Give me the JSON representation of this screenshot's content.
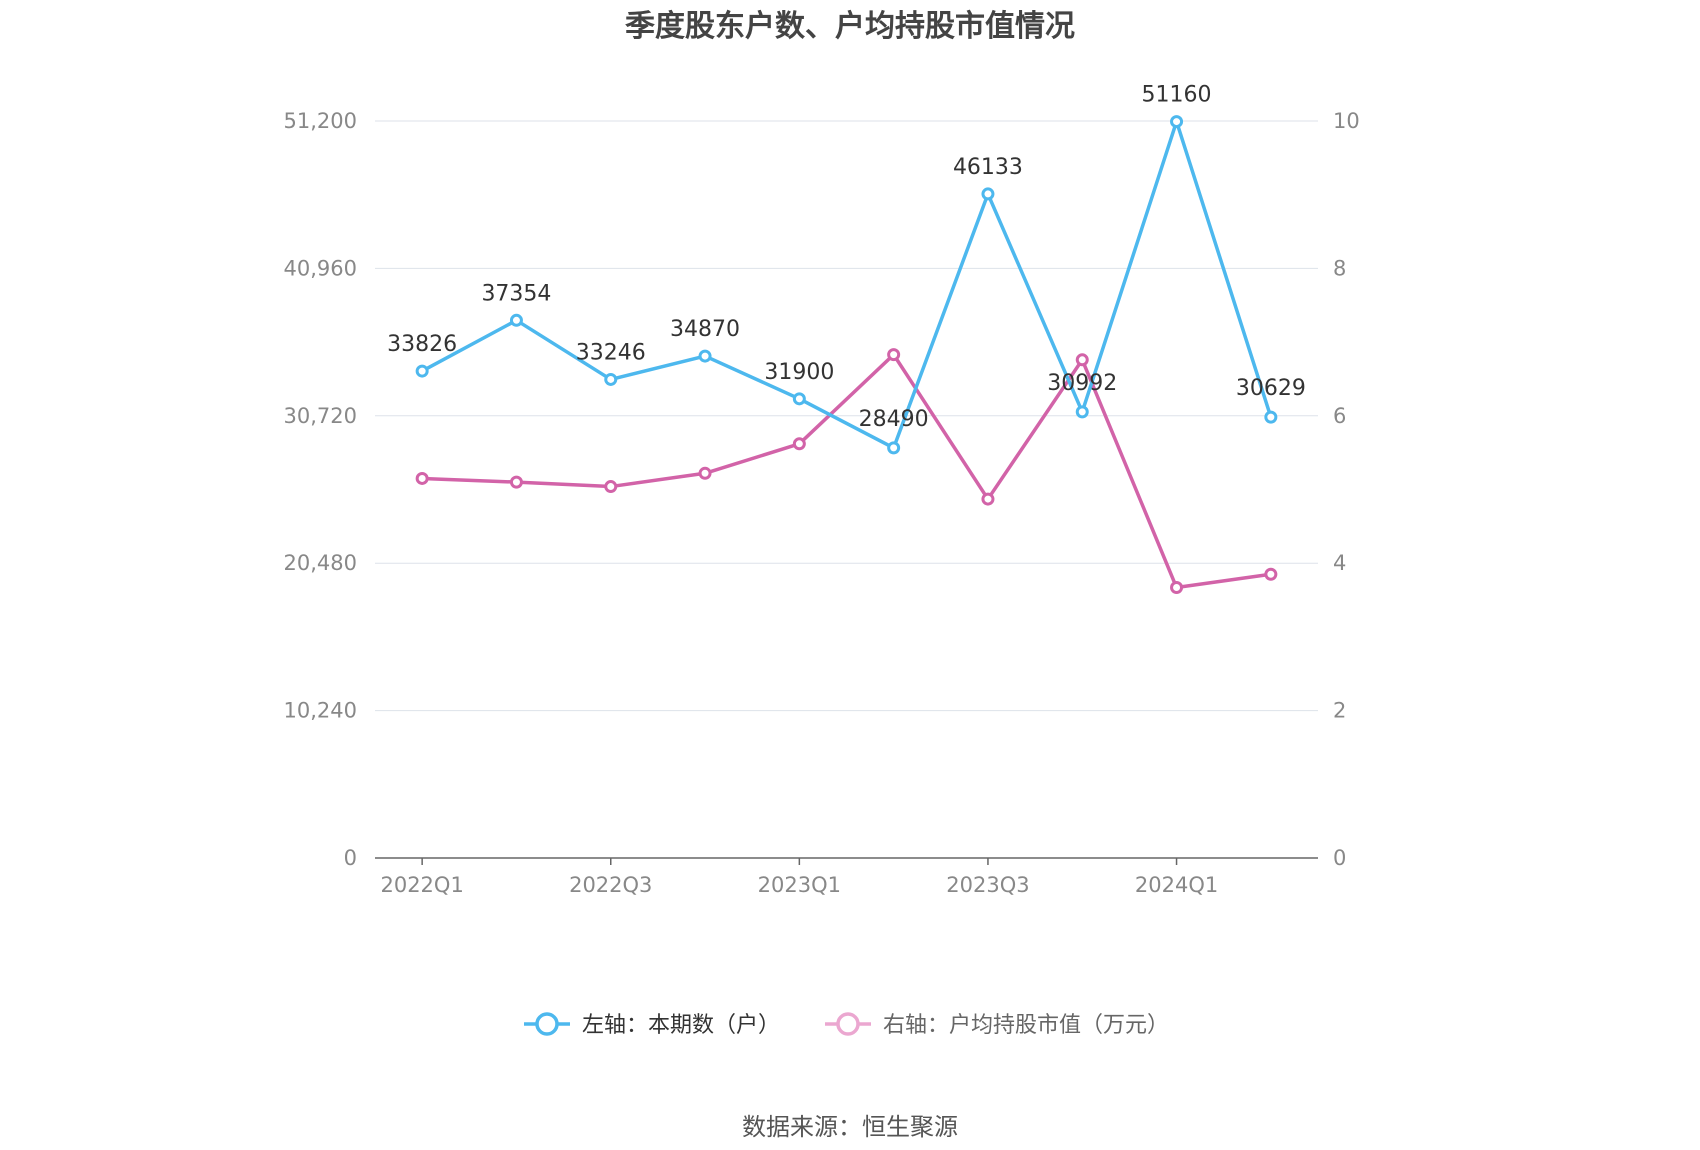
{
  "chart_data": {
    "type": "line",
    "title": "季度股东户数、户均持股市值情况",
    "categories": [
      "2022Q1",
      "2022Q2",
      "2022Q3",
      "2022Q4",
      "2023Q1",
      "2023Q2",
      "2023Q3",
      "2023Q4",
      "2024Q1",
      "2024Q2"
    ],
    "x_tick_labels": [
      "2022Q1",
      "2022Q3",
      "2023Q1",
      "2023Q3",
      "2024Q1"
    ],
    "y_left": {
      "range": [
        0,
        51200
      ],
      "ticks": [
        "0",
        "10,240",
        "20,480",
        "30,720",
        "40,960",
        "51,200"
      ]
    },
    "y_right": {
      "range": [
        0,
        10
      ],
      "ticks": [
        "0",
        "2",
        "4",
        "6",
        "8",
        "10"
      ]
    },
    "grid": true,
    "legend_position": "bottom",
    "series": [
      {
        "name": "左轴：本期数（户）",
        "axis": "left",
        "color": "#4DB8EE",
        "values": [
          33826,
          37354,
          33246,
          34870,
          31900,
          28490,
          46133,
          30992,
          51160,
          30629
        ],
        "labels": [
          "33826",
          "37354",
          "33246",
          "34870",
          "31900",
          "28490",
          "46133",
          "30992",
          "51160",
          "30629"
        ]
      },
      {
        "name": "右轴：户均持股市值（万元）",
        "axis": "right",
        "color": "#D263A8",
        "values": [
          5.15,
          5.1,
          5.04,
          5.22,
          5.62,
          6.83,
          4.87,
          6.76,
          3.67,
          3.85
        ]
      }
    ],
    "source": "数据来源：恒生聚源"
  }
}
